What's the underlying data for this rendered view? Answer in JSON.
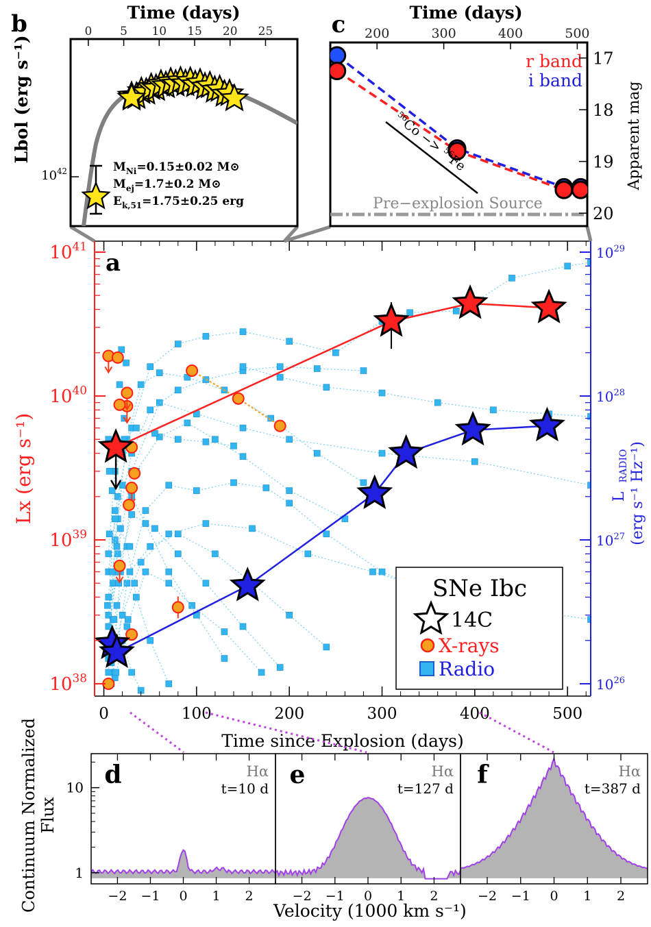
{
  "chart_data": [
    {
      "panel": "a",
      "type": "scatter",
      "xlabel": "Time since Explosion (days)",
      "ylabel": "Lx (erg s⁻¹)",
      "ylabel2": "L RADIO (erg s⁻¹ Hz⁻¹)",
      "xlim": [
        -10,
        525
      ],
      "ylim": [
        1e+38,
        1e+41
      ],
      "ylim2": [
        1e+26,
        1e+29
      ],
      "yscale": "log",
      "x_ticks": [
        0,
        100,
        200,
        300,
        400,
        500
      ],
      "y_ticks": [
        "10^38",
        "10^39",
        "10^40",
        "10^41"
      ],
      "y2_ticks": [
        "10^26",
        "10^27",
        "10^28",
        "10^29"
      ],
      "colors": {
        "xray": "#ff2020",
        "radio": "#2020e0",
        "sample_radio": "#33b5f0",
        "sample_xray": "#f5a020"
      },
      "legend": {
        "title": "SNe Ibc",
        "entries": [
          "14C",
          "X-rays",
          "Radio"
        ],
        "placement": "lower-right"
      },
      "series": [
        {
          "name": "14C X-ray",
          "axis": "left",
          "x": [
            13,
            310,
            395,
            480
          ],
          "y": [
            4.4e+39,
            3.3e+40,
            4.4e+40,
            4.1e+40
          ]
        },
        {
          "name": "14C Radio",
          "axis": "right",
          "x": [
            9,
            14,
            155,
            292,
            326,
            398,
            478
          ],
          "y": [
            1.9e+26,
            1.65e+26,
            4.8e+26,
            2.1e+27,
            4e+27,
            5.8e+27,
            6.2e+27
          ]
        },
        {
          "x_ray_sample": true,
          "name": "",
          "x": [
            5,
            15,
            25,
            25,
            17,
            30,
            33,
            30,
            27,
            17,
            30,
            80,
            95,
            145,
            190,
            5
          ],
          "y": [
            1.9e+40,
            1.85e+40,
            8.5e+39,
            1.05e+40,
            8.7e+39,
            4.4e+39,
            2.9e+39,
            2.3e+39,
            1.75e+39,
            6.6e+38,
            2.2e+38,
            3.4e+38,
            1.5e+40,
            9.6e+39,
            6.2e+39,
            1e+38
          ]
        }
      ]
    },
    {
      "panel": "b",
      "type": "scatter",
      "xlabel": "Time (days)",
      "ylabel": "Lbol (erg s⁻¹)",
      "x_ticks": [
        0,
        5,
        10,
        15,
        20,
        25
      ],
      "y_tick": "10^42",
      "annotations": [
        "M",
        "Ni",
        "=0.15±0.02 M",
        "M",
        "ej",
        "=1.7±0.2 M",
        "E",
        "k,51",
        "=1.75±0.25 erg",
        "⊙"
      ]
    },
    {
      "panel": "c",
      "type": "line",
      "xlabel": "Time (days)",
      "ylabel": "Apparent mag",
      "x_ticks": [
        200,
        300,
        400,
        500
      ],
      "y_ticks": [
        17,
        18,
        19,
        20
      ],
      "legend": [
        "r band",
        "i band"
      ],
      "annotation": "Pre−explosion Source",
      "decay_label": {
        "iso1": "56",
        "el1": "Co",
        "arrow": "−>",
        "iso2": "56",
        "el2": "Fe"
      },
      "series": [
        {
          "name": "r band",
          "x": [
            140,
            320,
            480,
            505
          ],
          "y": [
            17.25,
            18.8,
            19.55,
            19.55
          ]
        },
        {
          "name": "i band",
          "x": [
            140,
            320,
            480,
            505
          ],
          "y": [
            16.95,
            18.75,
            19.5,
            19.5
          ]
        }
      ],
      "ylim": [
        16.7,
        20.25
      ]
    },
    {
      "panel": "d-f",
      "type": "area",
      "xlabel": "Velocity (1000 km s⁻¹)",
      "ylabel_line1": "Continuum Normalized",
      "ylabel_line2": "Flux",
      "line_label": "Hα",
      "y_ticks": [
        1,
        10
      ],
      "x_ticks": [
        -2,
        -1,
        0,
        1,
        2
      ],
      "panels": [
        {
          "letter": "d",
          "time": "t=10 d",
          "peak": 1.9
        },
        {
          "letter": "e",
          "time": "t=127 d",
          "peak": 7.8
        },
        {
          "letter": "f",
          "time": "t=387 d",
          "peak": 22
        }
      ]
    }
  ]
}
